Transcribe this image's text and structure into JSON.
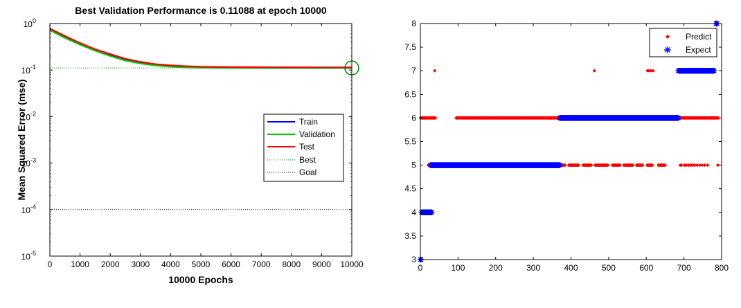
{
  "chart_data": [
    {
      "type": "line",
      "title": "Best Validation Performance is 0.11088 at epoch 10000",
      "xlabel": "10000 Epochs",
      "ylabel": "Mean Squared Error  (mse)",
      "xlim": [
        0,
        10000
      ],
      "ylim": [
        1e-05,
        1
      ],
      "yscale": "log",
      "xticks": [
        0,
        1000,
        2000,
        3000,
        4000,
        5000,
        6000,
        7000,
        8000,
        9000,
        10000
      ],
      "yticks": [
        {
          "value": 1e-05,
          "base": "10",
          "exp": "-5"
        },
        {
          "value": 0.0001,
          "base": "10",
          "exp": "-4"
        },
        {
          "value": 0.001,
          "base": "10",
          "exp": "-3"
        },
        {
          "value": 0.01,
          "base": "10",
          "exp": "-2"
        },
        {
          "value": 0.1,
          "base": "10",
          "exp": "-1"
        },
        {
          "value": 1,
          "base": "10",
          "exp": "0"
        }
      ],
      "grid": false,
      "legend_position": "center-right",
      "series": [
        {
          "name": "Train",
          "color": "#0000ff",
          "style": "solid",
          "x": [
            0,
            500,
            1000,
            1500,
            2000,
            2500,
            3000,
            3500,
            4000,
            4500,
            5000,
            6000,
            7000,
            8000,
            9000,
            10000
          ],
          "y": [
            0.76,
            0.52,
            0.37,
            0.27,
            0.21,
            0.17,
            0.145,
            0.13,
            0.122,
            0.117,
            0.114,
            0.112,
            0.1115,
            0.1112,
            0.111,
            0.1109
          ]
        },
        {
          "name": "Validation",
          "color": "#00cc00",
          "style": "solid",
          "x": [
            0,
            500,
            1000,
            1500,
            2000,
            2500,
            3000,
            3500,
            4000,
            4500,
            5000,
            6000,
            7000,
            8000,
            9000,
            10000
          ],
          "y": [
            0.72,
            0.49,
            0.35,
            0.26,
            0.2,
            0.16,
            0.138,
            0.125,
            0.118,
            0.114,
            0.112,
            0.1112,
            0.111,
            0.1109,
            0.1109,
            0.11088
          ]
        },
        {
          "name": "Test",
          "color": "#ff0000",
          "style": "solid",
          "x": [
            0,
            500,
            1000,
            1500,
            2000,
            2500,
            3000,
            3500,
            4000,
            4500,
            5000,
            6000,
            7000,
            8000,
            9000,
            10000
          ],
          "y": [
            0.78,
            0.54,
            0.38,
            0.28,
            0.22,
            0.175,
            0.15,
            0.134,
            0.126,
            0.121,
            0.118,
            0.116,
            0.115,
            0.1145,
            0.114,
            0.114
          ]
        },
        {
          "name": "Best",
          "color": "#008000",
          "style": "dotted",
          "x": [
            0,
            10000
          ],
          "y": [
            0.11088,
            0.11088
          ],
          "vertical_x": 10000
        },
        {
          "name": "Goal",
          "color": "#000000",
          "style": "dotted",
          "x": [
            0,
            10000
          ],
          "y": [
            0.0001,
            0.0001
          ]
        }
      ],
      "best_point": {
        "x": 10000,
        "y": 0.11088,
        "color": "#008000"
      }
    },
    {
      "type": "scatter",
      "title": "",
      "xlabel": "",
      "ylabel": "",
      "xlim": [
        0,
        800
      ],
      "ylim": [
        3,
        8
      ],
      "xticks": [
        0,
        100,
        200,
        300,
        400,
        500,
        600,
        700,
        800
      ],
      "yticks": [
        3,
        3.5,
        4,
        4.5,
        5,
        5.5,
        6,
        6.5,
        7,
        7.5,
        8
      ],
      "grid": false,
      "legend_position": "top-right",
      "series": [
        {
          "name": "Predict",
          "marker": "dot",
          "color": "#ff0000",
          "points": [
            {
              "y": 6,
              "x0": 0,
              "x1": 40,
              "step": 2
            },
            {
              "y": 7,
              "x": [
                38,
                462,
                603,
                607,
                612,
                618,
                695,
                700,
                705,
                710,
                715,
                720
              ]
            },
            {
              "y": 6,
              "x0": 95,
              "x1": 370,
              "step": 2
            },
            {
              "y": 6,
              "x0": 685,
              "x1": 792,
              "step": 2
            },
            {
              "y": 5,
              "x0": 370,
              "x1": 650,
              "step": 2,
              "skip": [
                [
                  385,
                  392
                ],
                [
                  422,
                  430
                ],
                [
                  455,
                  462
                ],
                [
                  500,
                  508
                ],
                [
                  532,
                  538
                ],
                [
                  565,
                  572
                ],
                [
                  592,
                  600
                ],
                [
                  618,
                  630
                ]
              ]
            },
            {
              "y": 5,
              "x": [
                690,
                694,
                702,
                706,
                712,
                718,
                722,
                728,
                735,
                742,
                748,
                755,
                763,
                790
              ]
            },
            {
              "y": 5,
              "x": [
                21,
                24,
                27
              ]
            }
          ]
        },
        {
          "name": "Expect",
          "marker": "star",
          "color": "#0000ff",
          "points": [
            {
              "y": 3,
              "x": [
                0,
                1,
                2
              ]
            },
            {
              "y": 4,
              "x0": 3,
              "x1": 30,
              "step": 1
            },
            {
              "y": 5,
              "x0": 27,
              "x1": 370,
              "step": 1
            },
            {
              "y": 6,
              "x0": 370,
              "x1": 685,
              "step": 1
            },
            {
              "y": 7,
              "x0": 685,
              "x1": 780,
              "step": 1
            },
            {
              "y": 8,
              "x": [
                785,
                786,
                787,
                788
              ]
            }
          ]
        }
      ]
    }
  ]
}
